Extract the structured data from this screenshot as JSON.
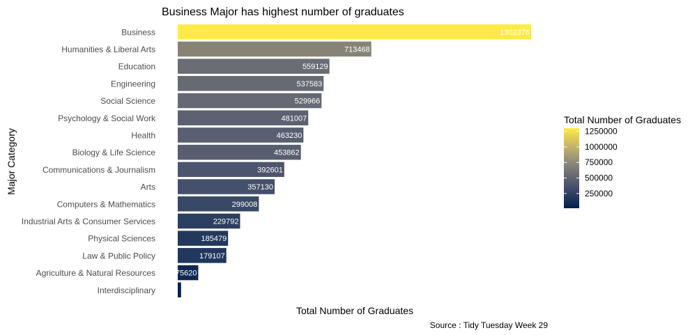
{
  "chart_data": {
    "type": "bar",
    "orientation": "horizontal",
    "title": "Business Major has highest number of graduates",
    "xlabel": "Total Number of Graduates",
    "ylabel": "Major Category",
    "caption": "Source : Tidy Tuesday Week 29",
    "grid": false,
    "categories": [
      "Business",
      "Humanities & Liberal Arts",
      "Education",
      "Engineering",
      "Social Science",
      "Psychology & Social Work",
      "Health",
      "Biology & Life Science",
      "Communications & Journalism",
      "Arts",
      "Computers & Mathematics",
      "Industrial Arts & Consumer Services",
      "Physical Sciences",
      "Law & Public Policy",
      "Agriculture & Natural Resources",
      "Interdisciplinary"
    ],
    "values": [
      1302376,
      713468,
      559129,
      537583,
      529966,
      481007,
      463230,
      453862,
      392601,
      357130,
      299008,
      229792,
      185479,
      179107,
      75620,
      12296
    ],
    "value_labels": [
      "1302376",
      "713468",
      "559129",
      "537583",
      "529966",
      "481007",
      "463230",
      "453862",
      "392601",
      "357130",
      "299008",
      "229792",
      "185479",
      "179107",
      "75620",
      ""
    ],
    "xlim": [
      0,
      1302376
    ],
    "legend": {
      "title": "Total Number of Graduates",
      "placement": "right",
      "ticks": [
        "1250000",
        "1000000",
        "750000",
        "500000",
        "250000"
      ],
      "tick_values": [
        1250000,
        1000000,
        750000,
        500000,
        250000
      ],
      "range": [
        12296,
        1302376
      ]
    },
    "colors": {
      "low": "#0a1f4d",
      "high": "#ffea46",
      "palette": "cividis"
    }
  }
}
